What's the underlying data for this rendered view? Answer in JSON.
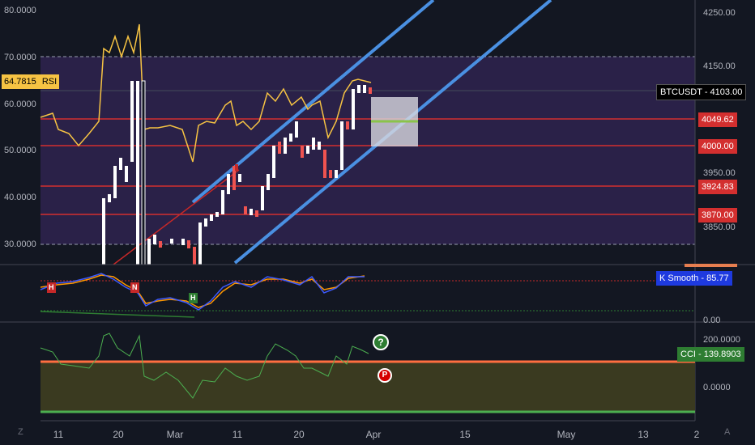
{
  "price_axis": {
    "ticks": [
      "4250.00",
      "4150.00",
      "3950.00",
      "3850.00"
    ]
  },
  "rsi_axis": {
    "ticks": [
      "80.0000",
      "70.0000",
      "60.0000",
      "50.0000",
      "40.0000",
      "30.0000"
    ]
  },
  "rsi_badge": {
    "value": "64.7815",
    "name": "RSI"
  },
  "symbol_label": "BTCUSDT",
  "symbol_price": "4103.00",
  "price_levels": [
    "4049.62",
    "4000.00",
    "3924.83",
    "3870.00"
  ],
  "k_smooth": {
    "name": "K Smooth",
    "value": "85.77"
  },
  "k_axis": "0.00",
  "cci": {
    "name": "CCI",
    "value": "139.8903"
  },
  "cci_axis": [
    "200.0000",
    "0.0000"
  ],
  "x_labels": [
    "11",
    "20",
    "Mar",
    "11",
    "20",
    "Apr",
    "15",
    "May",
    "13",
    "2"
  ],
  "corner_left": "Z",
  "corner_right": "A",
  "markers": {
    "question": "?",
    "prohibit": "P"
  },
  "pattern_labels": [
    "H",
    "N",
    "H"
  ],
  "colors": {
    "background": "#131722",
    "candle_up": "#ffffff",
    "candle_down": "#ef5350",
    "rsi_line": "#f6c343",
    "channel": "#4a90e2",
    "level_line": "#d32f2f",
    "cci_band": "#3a3a20"
  }
}
